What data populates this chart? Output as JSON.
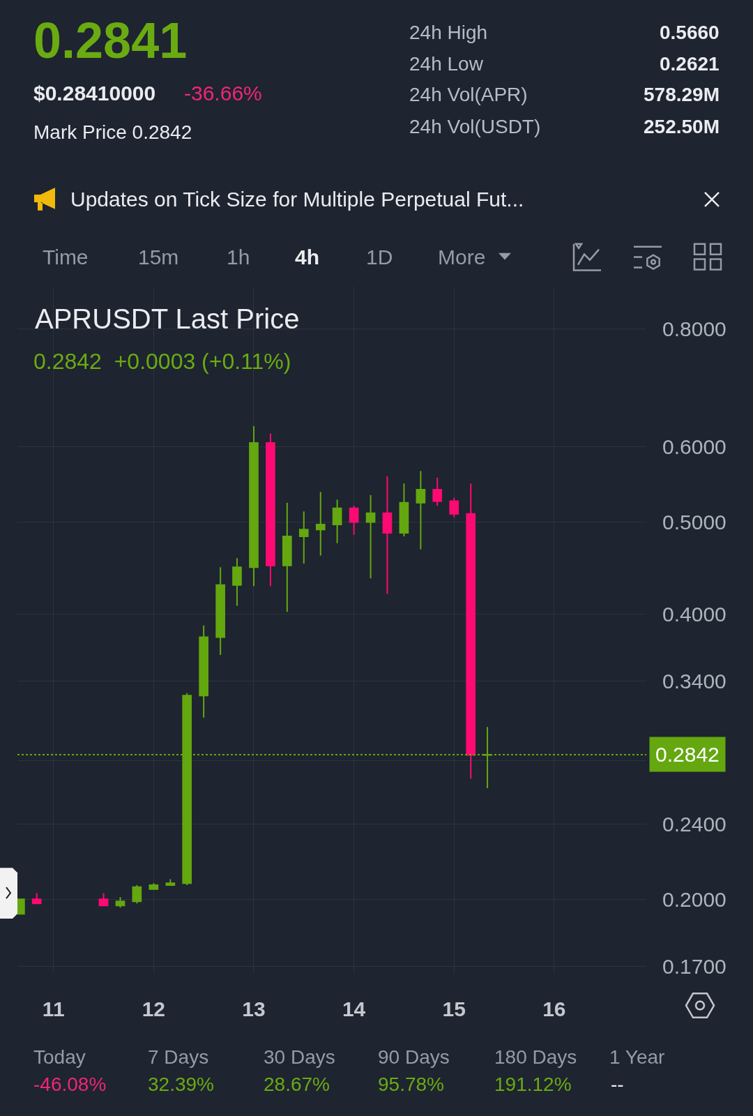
{
  "chart_data": {
    "type": "candlestick",
    "title": "APRUSDT Last Price",
    "subtitle": "0.2842  +0.0003 (+0.11%)",
    "x": [
      10.667,
      10.833,
      11.5,
      11.667,
      11.833,
      12,
      12.167,
      12.333,
      12.5,
      12.667,
      12.833,
      13,
      13.167,
      13.333,
      13.5,
      13.667,
      13.833,
      14,
      14.167,
      14.333,
      14.5,
      14.667,
      14.833,
      15,
      15.167,
      15.333
    ],
    "ohlc": [
      [
        0.193,
        0.2,
        0.193,
        0.2
      ],
      [
        0.2,
        0.203,
        0.198,
        0.198
      ],
      [
        0.2,
        0.203,
        0.197,
        0.197
      ],
      [
        0.197,
        0.201,
        0.196,
        0.199
      ],
      [
        0.199,
        0.207,
        0.198,
        0.206
      ],
      [
        0.205,
        0.208,
        0.205,
        0.207
      ],
      [
        0.207,
        0.21,
        0.207,
        0.208
      ],
      [
        0.208,
        0.33,
        0.207,
        0.328
      ],
      [
        0.328,
        0.389,
        0.311,
        0.378
      ],
      [
        0.378,
        0.448,
        0.362,
        0.429
      ],
      [
        0.429,
        0.458,
        0.408,
        0.448
      ],
      [
        0.448,
        0.631,
        0.428,
        0.606
      ],
      [
        0.606,
        0.62,
        0.428,
        0.45
      ],
      [
        0.45,
        0.524,
        0.402,
        0.483
      ],
      [
        0.483,
        0.513,
        0.452,
        0.491
      ],
      [
        0.491,
        0.538,
        0.461,
        0.497
      ],
      [
        0.497,
        0.528,
        0.475,
        0.517
      ],
      [
        0.517,
        0.52,
        0.485,
        0.5
      ],
      [
        0.5,
        0.534,
        0.436,
        0.511
      ],
      [
        0.511,
        0.559,
        0.42,
        0.487
      ],
      [
        0.487,
        0.549,
        0.483,
        0.524
      ],
      [
        0.524,
        0.566,
        0.468,
        0.541
      ],
      [
        0.541,
        0.557,
        0.52,
        0.526
      ],
      [
        0.526,
        0.53,
        0.506,
        0.51
      ],
      [
        0.51,
        0.549,
        0.268,
        0.2839
      ],
      [
        0.2839,
        0.304,
        0.262,
        0.2842
      ]
    ],
    "colors": [
      "#64a70f",
      "#fd0a73",
      "#fd0a73",
      "#64a70f",
      "#64a70f",
      "#64a70f",
      "#64a70f",
      "#64a70f",
      "#64a70f",
      "#64a70f",
      "#64a70f",
      "#64a70f",
      "#fd0a73",
      "#64a70f",
      "#64a70f",
      "#64a70f",
      "#64a70f",
      "#fd0a73",
      "#64a70f",
      "#fd0a73",
      "#64a70f",
      "#64a70f",
      "#fd0a73",
      "#fd0a73",
      "#fd0a73",
      "#64a70f"
    ],
    "xlim": [
      10.64,
      16.92
    ],
    "xticks": [
      11,
      12,
      13,
      14,
      15,
      16
    ],
    "ylim": [
      0.167,
      0.885
    ],
    "log": true,
    "yticks": [
      {
        "value": 0.17,
        "label": "0.1700"
      },
      {
        "value": 0.2,
        "label": "0.2000"
      },
      {
        "value": 0.24,
        "label": "0.2400"
      },
      {
        "value": 0.28,
        "label": null
      },
      {
        "value": 0.34,
        "label": "0.3400"
      },
      {
        "value": 0.4,
        "label": "0.4000"
      },
      {
        "value": 0.5,
        "label": "0.5000"
      },
      {
        "value": 0.6,
        "label": "0.6000"
      },
      {
        "value": 0.8,
        "label": "0.8000"
      }
    ],
    "grid": true,
    "ref_lines": [
      {
        "axis": "y",
        "value": 0.2842,
        "label": "0.2842",
        "color": "#64a70f",
        "line_style": "dotted"
      }
    ],
    "annotations": [
      "0.2841",
      "$0.28410000",
      "-36.66%",
      "Mark Price 0.2842",
      "24h High",
      "0.5660",
      "24h Low",
      "0.2621",
      "24h Vol(APR)",
      "578.29M",
      "24h Vol(USDT)",
      "252.50M",
      "Updates on Tick Size for Multiple Perpetual Fut...",
      "Time",
      "15m",
      "1h",
      "4h",
      "1D",
      "More",
      "Today",
      "-46.08%",
      "7 Days",
      "32.39%",
      "30 Days",
      "28.67%",
      "90 Days",
      "95.78%",
      "180 Days",
      "191.12%",
      "1 Year",
      "--"
    ]
  }
}
